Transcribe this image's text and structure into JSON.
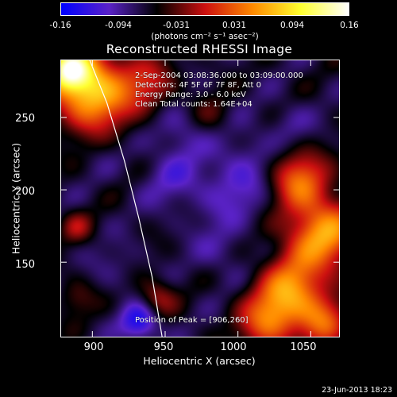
{
  "chart_data": {
    "type": "heatmap",
    "title": "Reconstructed RHESSI Image",
    "xlabel": "Heliocentric X (arcsec)",
    "ylabel": "Heliocentric Y (arcsec)",
    "xlim": [
      878,
      1070
    ],
    "ylim": [
      98,
      290
    ],
    "x_ticks": [
      "900",
      "950",
      "1000",
      "1050"
    ],
    "y_ticks": [
      "250",
      "200",
      "150"
    ],
    "colorbar": {
      "units": "(photons cm⁻² s⁻¹ asec⁻²)",
      "range": [
        -0.16,
        0.16
      ],
      "tick_labels": [
        "-0.16",
        "-0.094",
        "-0.031",
        "0.031",
        "0.094",
        "0.16"
      ],
      "colormap": [
        "#0000ff",
        "#5a22c8",
        "#000000",
        "#cc1010",
        "#ff8a00",
        "#ffff30",
        "#ffffff"
      ]
    },
    "annotations": [
      "2-Sep-2004 03:08:36.000 to 03:09:00.000",
      "Detectors: 4F 5F 6F 7F 8F, Att 0",
      "Energy Range: 3.0 - 6.0 keV",
      "Clean   Total counts: 1.64E+04"
    ],
    "peak_label": "Position of Peak = [906,260]",
    "limb_curve": {
      "x": [
        898,
        910,
        922,
        932,
        941,
        948
      ],
      "y": [
        290,
        260,
        220,
        180,
        140,
        98
      ]
    }
  },
  "footer": "23-Jun-2013 18:23"
}
